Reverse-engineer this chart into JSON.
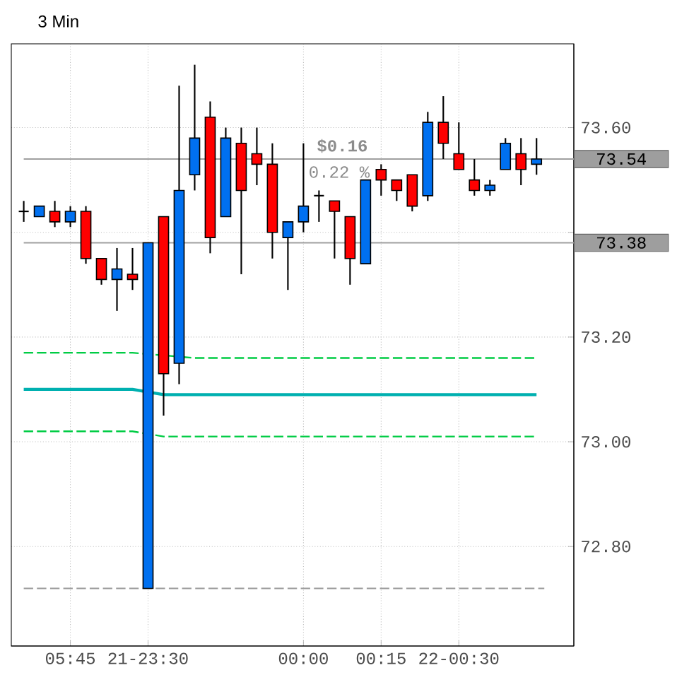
{
  "chart_data": {
    "type": "candlestick",
    "title": "3 Min",
    "categories": [
      null,
      null,
      null,
      "05:45",
      null,
      null,
      null,
      null,
      "21-23:30",
      null,
      null,
      null,
      null,
      null,
      null,
      null,
      null,
      null,
      "00:00",
      null,
      null,
      null,
      null,
      "00:15",
      null,
      null,
      null,
      null,
      "22-00:30",
      null,
      null,
      null,
      null,
      null
    ],
    "ohlc": [
      [
        73.44,
        73.46,
        73.42,
        73.44
      ],
      [
        73.43,
        73.45,
        73.43,
        73.45
      ],
      [
        73.44,
        73.46,
        73.41,
        73.42
      ],
      [
        73.42,
        73.45,
        73.41,
        73.44
      ],
      [
        73.44,
        73.45,
        73.34,
        73.35
      ],
      [
        73.35,
        73.35,
        73.3,
        73.31
      ],
      [
        73.31,
        73.37,
        73.25,
        73.33
      ],
      [
        73.32,
        73.37,
        73.29,
        73.31
      ],
      [
        72.72,
        73.38,
        72.72,
        73.38
      ],
      [
        73.43,
        73.43,
        73.05,
        73.13
      ],
      [
        73.15,
        73.68,
        73.11,
        73.48
      ],
      [
        73.51,
        73.72,
        73.48,
        73.58
      ],
      [
        73.62,
        73.65,
        73.36,
        73.39
      ],
      [
        73.43,
        73.6,
        73.43,
        73.58
      ],
      [
        73.57,
        73.6,
        73.32,
        73.48
      ],
      [
        73.55,
        73.6,
        73.49,
        73.53
      ],
      [
        73.53,
        73.57,
        73.35,
        73.4
      ],
      [
        73.39,
        73.42,
        73.29,
        73.42
      ],
      [
        73.42,
        73.57,
        73.4,
        73.45
      ],
      [
        73.47,
        73.48,
        73.42,
        73.47
      ],
      [
        73.46,
        73.46,
        73.35,
        73.44
      ],
      [
        73.43,
        73.43,
        73.3,
        73.35
      ],
      [
        73.34,
        73.5,
        73.34,
        73.5
      ],
      [
        73.52,
        73.53,
        73.47,
        73.5
      ],
      [
        73.5,
        73.5,
        73.46,
        73.48
      ],
      [
        73.51,
        73.51,
        73.44,
        73.45
      ],
      [
        73.47,
        73.63,
        73.46,
        73.61
      ],
      [
        73.61,
        73.66,
        73.54,
        73.57
      ],
      [
        73.55,
        73.61,
        73.52,
        73.52
      ],
      [
        73.5,
        73.54,
        73.47,
        73.48
      ],
      [
        73.48,
        73.5,
        73.47,
        73.49
      ],
      [
        73.52,
        73.58,
        73.52,
        73.57
      ],
      [
        73.55,
        73.58,
        73.49,
        73.52
      ],
      [
        73.53,
        73.58,
        73.51,
        73.54
      ]
    ],
    "colors": [
      "#000000",
      "#0070f0",
      "#ff0000",
      "#0070f0",
      "#ff0000",
      "#ff0000",
      "#0070f0",
      "#ff0000",
      "#0070f0",
      "#ff0000",
      "#0070f0",
      "#0070f0",
      "#ff0000",
      "#0070f0",
      "#ff0000",
      "#ff0000",
      "#ff0000",
      "#0070f0",
      "#0070f0",
      "#000000",
      "#ff0000",
      "#ff0000",
      "#0070f0",
      "#ff0000",
      "#ff0000",
      "#ff0000",
      "#0070f0",
      "#ff0000",
      "#ff0000",
      "#ff0000",
      "#0070f0",
      "#0070f0",
      "#ff0000",
      "#0070f0"
    ],
    "series": [
      {
        "type": "line",
        "color": "#00cc44",
        "line_style": "dashed",
        "values": [
          73.17,
          73.17,
          73.17,
          73.17,
          73.17,
          73.17,
          73.17,
          73.17,
          null,
          null,
          null,
          73.16,
          73.16,
          73.16,
          73.16,
          73.16,
          73.16,
          73.16,
          73.16,
          73.16,
          73.16,
          73.16,
          73.16,
          73.16,
          73.16,
          73.16,
          73.16,
          73.16,
          73.16,
          73.16,
          73.16,
          73.16,
          73.16,
          73.16
        ]
      },
      {
        "type": "line",
        "color": "#00b0b0",
        "line_style": "solid",
        "values": [
          73.1,
          73.1,
          73.1,
          73.1,
          73.1,
          73.1,
          73.1,
          73.1,
          null,
          73.09,
          73.09,
          73.09,
          73.09,
          73.09,
          73.09,
          73.09,
          73.09,
          73.09,
          73.09,
          73.09,
          73.09,
          73.09,
          73.09,
          73.09,
          73.09,
          73.09,
          73.09,
          73.09,
          73.09,
          73.09,
          73.09,
          73.09,
          73.09,
          73.09
        ]
      },
      {
        "type": "line",
        "color": "#00cc44",
        "line_style": "dashed",
        "values": [
          73.02,
          73.02,
          73.02,
          73.02,
          73.02,
          73.02,
          73.02,
          73.02,
          null,
          73.01,
          73.01,
          73.01,
          73.01,
          73.01,
          73.01,
          73.01,
          73.01,
          73.01,
          73.01,
          73.01,
          73.01,
          73.01,
          73.01,
          73.01,
          73.01,
          73.01,
          73.01,
          73.01,
          73.01,
          73.01,
          73.01,
          73.01,
          73.01,
          73.01
        ]
      }
    ],
    "ref_lines": [
      {
        "axis": "y",
        "value": 72.72,
        "color": "#999999",
        "line_style": "dashed"
      },
      {
        "axis": "y",
        "value": 73.54,
        "label": "73.54",
        "color": "#a0a0a0",
        "line_style": "solid"
      },
      {
        "axis": "y",
        "value": 73.38,
        "label": "73.38",
        "color": "#a0a0a0",
        "line_style": "solid"
      }
    ],
    "annotations": [
      "$0.16",
      "0.22 %"
    ],
    "ylim": [
      72.61,
      73.76
    ],
    "yticks": [
      {
        "value": 72.8,
        "label": "72.80"
      },
      {
        "value": 73.0,
        "label": "73.00"
      },
      {
        "value": 73.2,
        "label": "73.20"
      },
      {
        "value": 73.4,
        "label": null
      },
      {
        "value": 73.6,
        "label": "73.60"
      }
    ],
    "grid": true,
    "marker": "none"
  }
}
